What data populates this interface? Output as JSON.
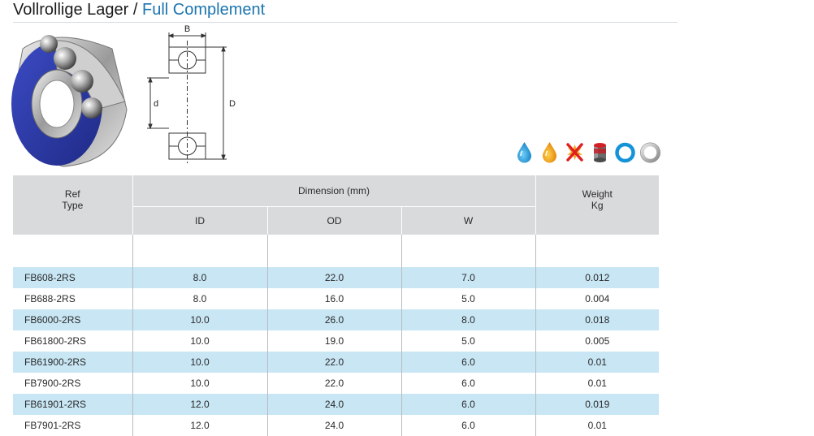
{
  "title": {
    "german": "Vollrollige Lager",
    "separator": " / ",
    "english": "Full Complement"
  },
  "drawing": {
    "label_width": "B",
    "label_inner": "d",
    "label_outer": "D"
  },
  "feature_icons": [
    "water-drop-icon",
    "oil-drop-icon",
    "no-spark-icon",
    "sealed-cylinder-icon",
    "blue-ring-icon",
    "grey-ring-icon"
  ],
  "colors": {
    "title_accent": "#1a74b0",
    "header_bg": "#d9dadb",
    "row_highlight": "#c8e6f4",
    "seal_blue": "#2c3aa8"
  },
  "table": {
    "headers": {
      "ref": "Ref",
      "type": "Type",
      "dimension": "Dimension (mm)",
      "id": "ID",
      "od": "OD",
      "w": "W",
      "weight": "Weight",
      "weight_unit": "Kg"
    },
    "rows": [
      {
        "ref": "FB608-2RS",
        "id": "8.0",
        "od": "22.0",
        "w": "7.0",
        "kg": "0.012"
      },
      {
        "ref": "FB688-2RS",
        "id": "8.0",
        "od": "16.0",
        "w": "5.0",
        "kg": "0.004"
      },
      {
        "ref": "FB6000-2RS",
        "id": "10.0",
        "od": "26.0",
        "w": "8.0",
        "kg": "0.018"
      },
      {
        "ref": "FB61800-2RS",
        "id": "10.0",
        "od": "19.0",
        "w": "5.0",
        "kg": "0.005"
      },
      {
        "ref": "FB61900-2RS",
        "id": "10.0",
        "od": "22.0",
        "w": "6.0",
        "kg": "0.01"
      },
      {
        "ref": "FB7900-2RS",
        "id": "10.0",
        "od": "22.0",
        "w": "6.0",
        "kg": "0.01"
      },
      {
        "ref": "FB61901-2RS",
        "id": "12.0",
        "od": "24.0",
        "w": "6.0",
        "kg": "0.019"
      },
      {
        "ref": "FB7901-2RS",
        "id": "12.0",
        "od": "24.0",
        "w": "6.0",
        "kg": "0.01"
      }
    ]
  }
}
